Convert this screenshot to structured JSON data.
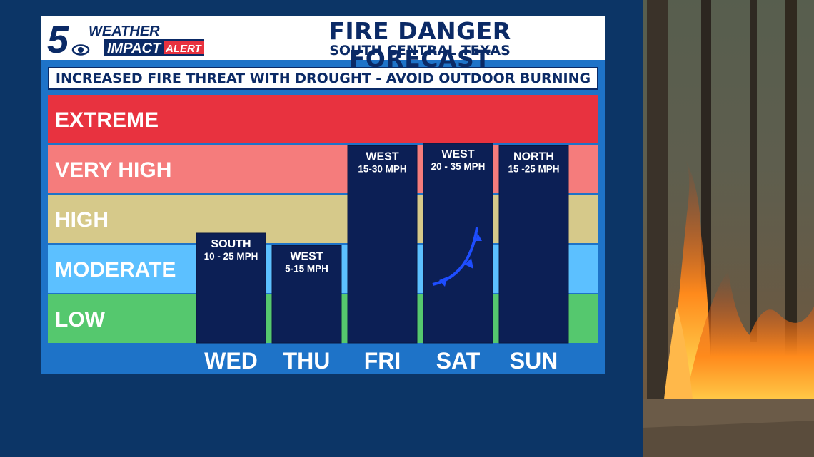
{
  "header": {
    "logo_number": "5",
    "logo_weather": "WEATHER",
    "logo_impact": "IMPACT",
    "logo_alert": "ALERT",
    "title": "FIRE DANGER FORECAST",
    "subtitle": "SOUTH CENTRAL TEXAS"
  },
  "banner": "INCREASED FIRE THREAT WITH DROUGHT - AVOID OUTDOOR BURNING",
  "colors": {
    "extreme": "#e8323f",
    "very_high": "#f57c7c",
    "high": "#d6c98a",
    "moderate": "#5cc0ff",
    "low": "#55c86e",
    "bar": "#0c1f55"
  },
  "chart_data": {
    "type": "bar",
    "categories": [
      "WED",
      "THU",
      "FRI",
      "SAT",
      "SUN"
    ],
    "levels": [
      "LOW",
      "MODERATE",
      "HIGH",
      "VERY HIGH",
      "EXTREME"
    ],
    "values": [
      2.2,
      1.95,
      3.95,
      4.0,
      3.95
    ],
    "ylim": [
      0,
      5
    ],
    "bar_labels": [
      {
        "dir": "SOUTH",
        "speed": "10 - 25 MPH"
      },
      {
        "dir": "WEST",
        "speed": "5-15 MPH"
      },
      {
        "dir": "WEST",
        "speed": "15-30 MPH"
      },
      {
        "dir": "WEST",
        "speed": "20 - 35 MPH"
      },
      {
        "dir": "NORTH",
        "speed": "15 -25 MPH"
      }
    ],
    "front_icon": "cold-front-icon"
  }
}
